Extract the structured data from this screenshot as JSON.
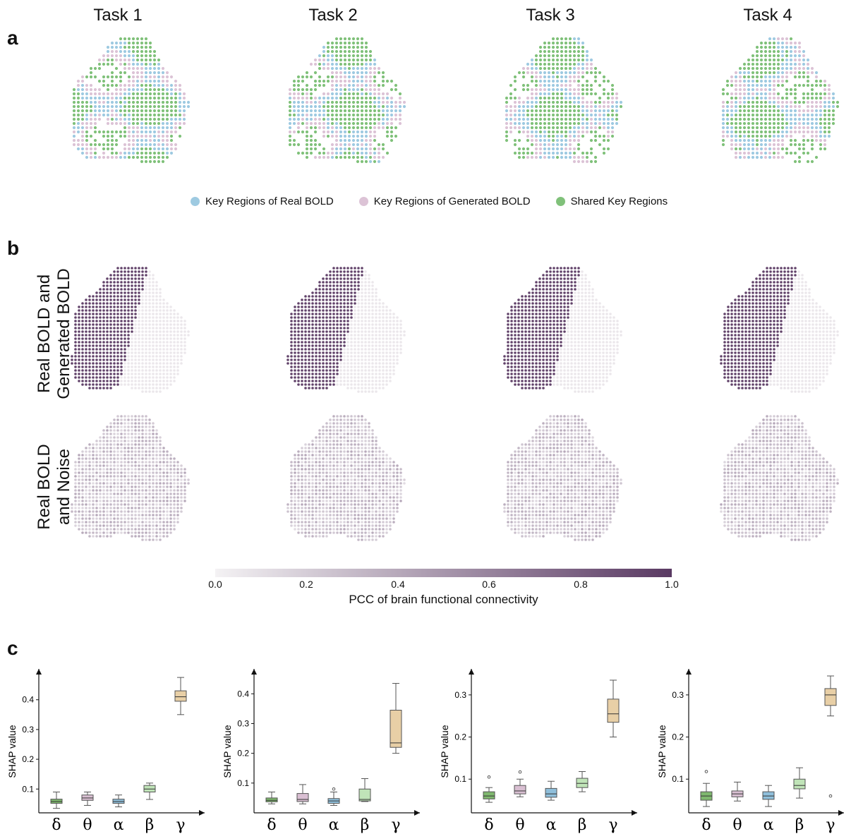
{
  "panel_letters": {
    "a": "a",
    "b": "b",
    "c": "c"
  },
  "tasks": [
    "Task 1",
    "Task 2",
    "Task 3",
    "Task 4"
  ],
  "legend": [
    {
      "label": "Key Regions of Real BOLD",
      "color": "#9ecae1"
    },
    {
      "label": "Key Regions of Generated BOLD",
      "color": "#dcc3d6"
    },
    {
      "label": "Shared Key Regions",
      "color": "#80c17a"
    }
  ],
  "row_labels": {
    "real_generated": [
      "Real BOLD  and",
      "Generated BOLD"
    ],
    "real_noise": [
      "Real BOLD",
      "and Noise"
    ]
  },
  "colorbar": {
    "ticks": [
      "0.0",
      "0.2",
      "0.4",
      "0.6",
      "0.8",
      "1.0"
    ],
    "label": "PCC of brain functional connectivity",
    "color_low": "#f4f2f4",
    "color_high": "#5a3a63"
  },
  "chart_data": [
    {
      "type": "boxplot",
      "ylabel": "SHAP value",
      "categories": [
        "δ",
        "θ",
        "α",
        "β",
        "γ"
      ],
      "ylim": [
        0.02,
        0.48
      ],
      "yticks": [
        0.1,
        0.2,
        0.3,
        0.4
      ],
      "boxes": [
        {
          "min": 0.035,
          "q1": 0.052,
          "median": 0.058,
          "q3": 0.066,
          "max": 0.09,
          "outliers": []
        },
        {
          "min": 0.045,
          "q1": 0.062,
          "median": 0.07,
          "q3": 0.08,
          "max": 0.09,
          "outliers": []
        },
        {
          "min": 0.04,
          "q1": 0.052,
          "median": 0.058,
          "q3": 0.066,
          "max": 0.08,
          "outliers": []
        },
        {
          "min": 0.065,
          "q1": 0.09,
          "median": 0.1,
          "q3": 0.112,
          "max": 0.12,
          "outliers": []
        },
        {
          "min": 0.35,
          "q1": 0.395,
          "median": 0.41,
          "q3": 0.43,
          "max": 0.475,
          "outliers": []
        }
      ]
    },
    {
      "type": "boxplot",
      "ylabel": "SHAP value",
      "categories": [
        "δ",
        "θ",
        "α",
        "β",
        "γ"
      ],
      "ylim": [
        0.0,
        0.46
      ],
      "yticks": [
        0.1,
        0.2,
        0.3,
        0.4
      ],
      "boxes": [
        {
          "min": 0.03,
          "q1": 0.037,
          "median": 0.042,
          "q3": 0.05,
          "max": 0.07,
          "outliers": []
        },
        {
          "min": 0.03,
          "q1": 0.038,
          "median": 0.045,
          "q3": 0.065,
          "max": 0.095,
          "outliers": []
        },
        {
          "min": 0.025,
          "q1": 0.032,
          "median": 0.04,
          "q3": 0.048,
          "max": 0.07,
          "outliers": [
            0.08
          ]
        },
        {
          "min": 0.038,
          "q1": 0.04,
          "median": 0.045,
          "q3": 0.08,
          "max": 0.115,
          "outliers": []
        },
        {
          "min": 0.2,
          "q1": 0.22,
          "median": 0.235,
          "q3": 0.345,
          "max": 0.435,
          "outliers": []
        }
      ]
    },
    {
      "type": "boxplot",
      "ylabel": "SHAP value",
      "categories": [
        "δ",
        "θ",
        "α",
        "β",
        "γ"
      ],
      "ylim": [
        0.02,
        0.345
      ],
      "yticks": [
        0.1,
        0.2,
        0.3
      ],
      "boxes": [
        {
          "min": 0.045,
          "q1": 0.053,
          "median": 0.06,
          "q3": 0.07,
          "max": 0.08,
          "outliers": [
            0.105
          ]
        },
        {
          "min": 0.058,
          "q1": 0.065,
          "median": 0.072,
          "q3": 0.085,
          "max": 0.1,
          "outliers": [
            0.117
          ]
        },
        {
          "min": 0.05,
          "q1": 0.057,
          "median": 0.065,
          "q3": 0.078,
          "max": 0.095,
          "outliers": []
        },
        {
          "min": 0.07,
          "q1": 0.08,
          "median": 0.09,
          "q3": 0.102,
          "max": 0.118,
          "outliers": []
        },
        {
          "min": 0.2,
          "q1": 0.235,
          "median": 0.255,
          "q3": 0.29,
          "max": 0.335,
          "outliers": []
        }
      ]
    },
    {
      "type": "boxplot",
      "ylabel": "SHAP value",
      "categories": [
        "δ",
        "θ",
        "α",
        "β",
        "γ"
      ],
      "ylim": [
        0.02,
        0.345
      ],
      "yticks": [
        0.1,
        0.2,
        0.3
      ],
      "boxes": [
        {
          "min": 0.035,
          "q1": 0.05,
          "median": 0.06,
          "q3": 0.07,
          "max": 0.09,
          "outliers": [
            0.118
          ]
        },
        {
          "min": 0.048,
          "q1": 0.058,
          "median": 0.065,
          "q3": 0.072,
          "max": 0.093,
          "outliers": []
        },
        {
          "min": 0.035,
          "q1": 0.052,
          "median": 0.06,
          "q3": 0.07,
          "max": 0.085,
          "outliers": []
        },
        {
          "min": 0.055,
          "q1": 0.077,
          "median": 0.085,
          "q3": 0.1,
          "max": 0.127,
          "outliers": []
        },
        {
          "min": 0.25,
          "q1": 0.275,
          "median": 0.3,
          "q3": 0.315,
          "max": 0.345,
          "outliers": [
            0.06
          ]
        }
      ]
    }
  ],
  "box_colors": [
    "#7fb86e",
    "#d9bfd2",
    "#8fbfdb",
    "#c0e4b8",
    "#e8cfa6"
  ]
}
